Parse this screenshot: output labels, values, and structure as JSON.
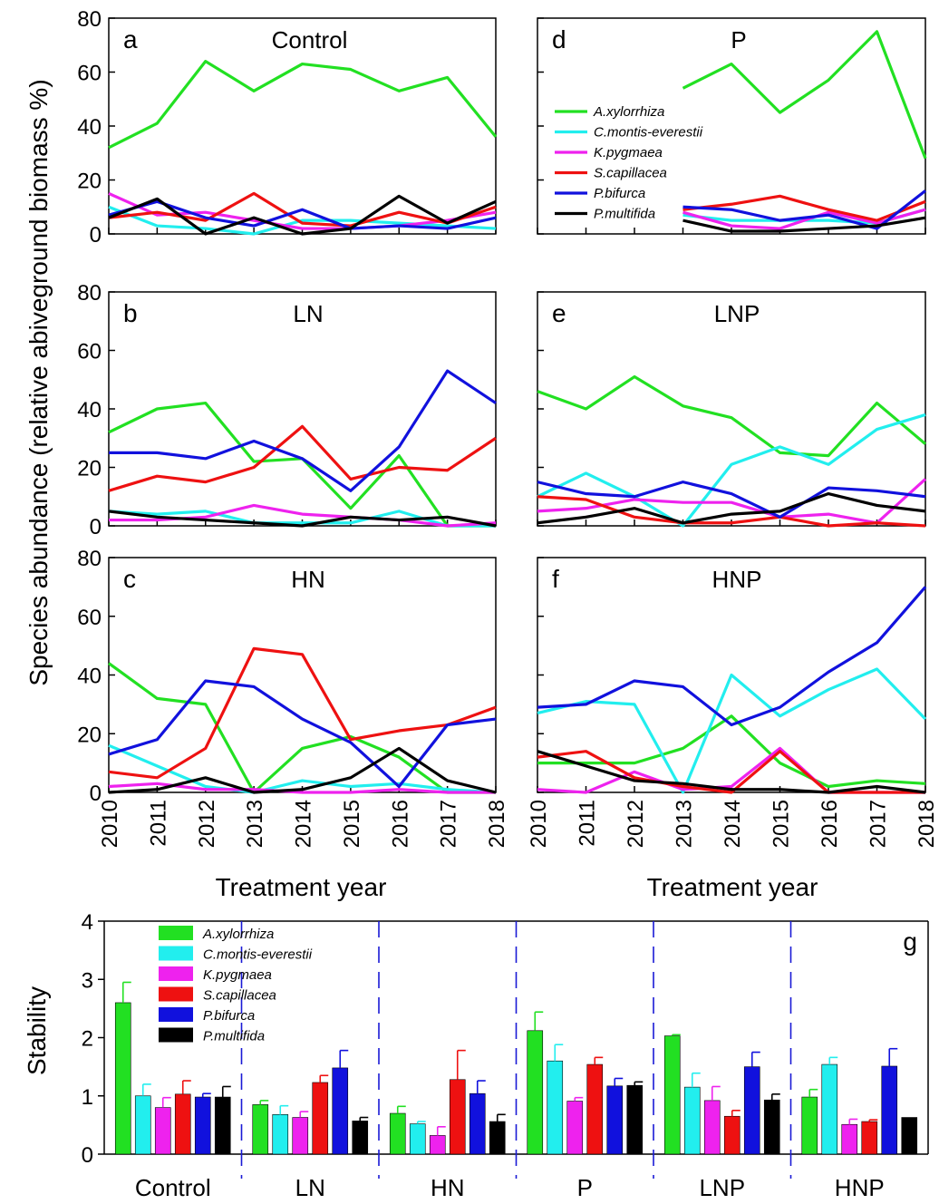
{
  "figure": {
    "y_label_top": "Species abundance (relative abiveground biomass %)",
    "x_label": "Treatment year",
    "y_label_bottom": "Stability"
  },
  "colors": {
    "A.xylorrhiza": "#22e022",
    "C.montis-everestii": "#22eeee",
    "K.pygmaea": "#ee22ee",
    "S.capillacea": "#ee1111",
    "P.bifurca": "#1111dd",
    "P.multifida": "#000000"
  },
  "chart_data": [
    {
      "type": "line",
      "panel": "a",
      "title": "Control",
      "x": [
        2010,
        2011,
        2012,
        2013,
        2014,
        2015,
        2016,
        2017,
        2018
      ],
      "ylim": [
        0,
        80
      ],
      "yticks": [
        0,
        20,
        40,
        60,
        80
      ],
      "show_x_ticklabels": false,
      "series": [
        {
          "name": "A.xylorrhiza",
          "values": [
            32,
            41,
            64,
            53,
            63,
            61,
            53,
            58,
            36
          ]
        },
        {
          "name": "C.montis-everestii",
          "values": [
            10,
            3,
            2,
            0,
            5,
            5,
            4,
            3,
            2
          ]
        },
        {
          "name": "K.pygmaea",
          "values": [
            15,
            7,
            8,
            5,
            2,
            2,
            3,
            5,
            8
          ]
        },
        {
          "name": "S.capillacea",
          "values": [
            6,
            8,
            5,
            15,
            4,
            3,
            8,
            4,
            10
          ]
        },
        {
          "name": "P.bifurca",
          "values": [
            7,
            12,
            6,
            3,
            9,
            2,
            3,
            2,
            6
          ]
        },
        {
          "name": "P.multifida",
          "values": [
            6,
            13,
            0,
            6,
            0,
            2,
            14,
            4,
            12
          ]
        }
      ]
    },
    {
      "type": "line",
      "panel": "b",
      "title": "LN",
      "x": [
        2010,
        2011,
        2012,
        2013,
        2014,
        2015,
        2016,
        2017,
        2018
      ],
      "ylim": [
        0,
        80
      ],
      "yticks": [
        0,
        20,
        40,
        60,
        80
      ],
      "show_x_ticklabels": false,
      "series": [
        {
          "name": "A.xylorrhiza",
          "values": [
            32,
            40,
            42,
            22,
            23,
            6,
            24,
            0,
            0
          ]
        },
        {
          "name": "C.montis-everestii",
          "values": [
            5,
            4,
            5,
            1,
            1,
            1,
            5,
            0,
            0
          ]
        },
        {
          "name": "K.pygmaea",
          "values": [
            2,
            2,
            3,
            7,
            4,
            3,
            2,
            0,
            1
          ]
        },
        {
          "name": "S.capillacea",
          "values": [
            12,
            17,
            15,
            20,
            34,
            16,
            20,
            19,
            30
          ]
        },
        {
          "name": "P.bifurca",
          "values": [
            25,
            25,
            23,
            29,
            23,
            12,
            27,
            53,
            42
          ]
        },
        {
          "name": "P.multifida",
          "values": [
            5,
            3,
            2,
            1,
            0,
            3,
            2,
            3,
            0
          ]
        }
      ]
    },
    {
      "type": "line",
      "panel": "c",
      "title": "HN",
      "x": [
        2010,
        2011,
        2012,
        2013,
        2014,
        2015,
        2016,
        2017,
        2018
      ],
      "ylim": [
        0,
        80
      ],
      "yticks": [
        0,
        20,
        40,
        60,
        80
      ],
      "show_x_ticklabels": true,
      "series": [
        {
          "name": "A.xylorrhiza",
          "values": [
            44,
            32,
            30,
            0,
            15,
            19,
            12,
            0,
            0
          ]
        },
        {
          "name": "C.montis-everestii",
          "values": [
            16,
            9,
            2,
            0,
            4,
            2,
            3,
            1,
            0
          ]
        },
        {
          "name": "K.pygmaea",
          "values": [
            2,
            3,
            1,
            1,
            0,
            0,
            1,
            0,
            0
          ]
        },
        {
          "name": "S.capillacea",
          "values": [
            7,
            5,
            15,
            49,
            47,
            18,
            21,
            23,
            29
          ]
        },
        {
          "name": "P.bifurca",
          "values": [
            13,
            18,
            38,
            36,
            25,
            17,
            2,
            23,
            25
          ]
        },
        {
          "name": "P.multifida",
          "values": [
            0,
            1,
            5,
            0,
            1,
            5,
            15,
            4,
            0
          ]
        }
      ]
    },
    {
      "type": "line",
      "panel": "d",
      "title": "P",
      "x": [
        2010,
        2011,
        2012,
        2013,
        2014,
        2015,
        2016,
        2017,
        2018
      ],
      "ylim": [
        0,
        80
      ],
      "show_x_ticklabels": false,
      "series": [
        {
          "name": "A.xylorrhiza",
          "values": [
            null,
            null,
            null,
            54,
            63,
            45,
            57,
            75,
            28
          ]
        },
        {
          "name": "C.montis-everestii",
          "values": [
            null,
            null,
            null,
            7,
            5,
            5,
            5,
            4,
            9
          ]
        },
        {
          "name": "K.pygmaea",
          "values": [
            null,
            null,
            null,
            8,
            3,
            2,
            8,
            4,
            9
          ]
        },
        {
          "name": "S.capillacea",
          "values": [
            null,
            null,
            null,
            9,
            11,
            14,
            9,
            5,
            12
          ]
        },
        {
          "name": "P.bifurca",
          "values": [
            null,
            null,
            null,
            10,
            9,
            5,
            7,
            2,
            16
          ]
        },
        {
          "name": "P.multifida",
          "values": [
            null,
            null,
            null,
            5,
            1,
            1,
            2,
            3,
            6
          ]
        }
      ]
    },
    {
      "type": "line",
      "panel": "e",
      "title": "LNP",
      "x": [
        2010,
        2011,
        2012,
        2013,
        2014,
        2015,
        2016,
        2017,
        2018
      ],
      "ylim": [
        0,
        80
      ],
      "show_x_ticklabels": false,
      "series": [
        {
          "name": "A.xylorrhiza",
          "values": [
            46,
            40,
            51,
            41,
            37,
            25,
            24,
            42,
            28
          ]
        },
        {
          "name": "C.montis-everestii",
          "values": [
            10,
            18,
            10,
            0,
            21,
            27,
            21,
            33,
            38
          ]
        },
        {
          "name": "K.pygmaea",
          "values": [
            5,
            6,
            9,
            8,
            8,
            3,
            4,
            1,
            16
          ]
        },
        {
          "name": "S.capillacea",
          "values": [
            10,
            9,
            3,
            1,
            1,
            3,
            0,
            1,
            0
          ]
        },
        {
          "name": "P.bifurca",
          "values": [
            15,
            11,
            10,
            15,
            11,
            3,
            13,
            12,
            10
          ]
        },
        {
          "name": "P.multifida",
          "values": [
            1,
            3,
            6,
            1,
            4,
            5,
            11,
            7,
            5
          ]
        }
      ]
    },
    {
      "type": "line",
      "panel": "f",
      "title": "HNP",
      "x": [
        2010,
        2011,
        2012,
        2013,
        2014,
        2015,
        2016,
        2017,
        2018
      ],
      "ylim": [
        0,
        80
      ],
      "show_x_ticklabels": true,
      "series": [
        {
          "name": "A.xylorrhiza",
          "values": [
            10,
            10,
            10,
            15,
            26,
            10,
            2,
            4,
            3
          ]
        },
        {
          "name": "C.montis-everestii",
          "values": [
            27,
            31,
            30,
            0,
            40,
            26,
            35,
            42,
            25
          ]
        },
        {
          "name": "K.pygmaea",
          "values": [
            1,
            0,
            7,
            1,
            2,
            15,
            0,
            0,
            0
          ]
        },
        {
          "name": "S.capillacea",
          "values": [
            12,
            14,
            5,
            2,
            0,
            14,
            0,
            0,
            0
          ]
        },
        {
          "name": "P.bifurca",
          "values": [
            29,
            30,
            38,
            36,
            23,
            29,
            41,
            51,
            70
          ]
        },
        {
          "name": "P.multifida",
          "values": [
            14,
            9,
            4,
            3,
            1,
            1,
            0,
            2,
            0
          ]
        }
      ]
    },
    {
      "type": "bar",
      "panel": "g",
      "categories": [
        "Control",
        "LN",
        "HN",
        "P",
        "LNP",
        "HNP"
      ],
      "ylim": [
        0,
        4
      ],
      "yticks": [
        0,
        1,
        2,
        3,
        4
      ],
      "series": [
        {
          "name": "A.xylorrhiza",
          "values": [
            2.6,
            0.85,
            0.7,
            2.12,
            2.03,
            0.98
          ],
          "errors": [
            0.35,
            0.07,
            0.12,
            0.32,
            0.02,
            0.13
          ]
        },
        {
          "name": "C.montis-everestii",
          "values": [
            1.0,
            0.68,
            0.52,
            1.6,
            1.15,
            1.54
          ],
          "errors": [
            0.2,
            0.15,
            0.04,
            0.28,
            0.24,
            0.12
          ]
        },
        {
          "name": "K.pygmaea",
          "values": [
            0.8,
            0.63,
            0.32,
            0.91,
            0.92,
            0.51
          ],
          "errors": [
            0.17,
            0.1,
            0.15,
            0.06,
            0.24,
            0.09
          ]
        },
        {
          "name": "S.capillacea",
          "values": [
            1.03,
            1.23,
            1.28,
            1.54,
            0.65,
            0.56
          ],
          "errors": [
            0.23,
            0.12,
            0.5,
            0.12,
            0.1,
            0.03
          ]
        },
        {
          "name": "P.bifurca",
          "values": [
            0.98,
            1.48,
            1.04,
            1.17,
            1.5,
            1.51
          ],
          "errors": [
            0.06,
            0.3,
            0.22,
            0.13,
            0.25,
            0.3
          ]
        },
        {
          "name": "P.multifida",
          "values": [
            0.98,
            0.57,
            0.56,
            1.18,
            0.93,
            0.63
          ],
          "errors": [
            0.18,
            0.06,
            0.12,
            0.06,
            0.1,
            0.0
          ]
        }
      ]
    }
  ]
}
